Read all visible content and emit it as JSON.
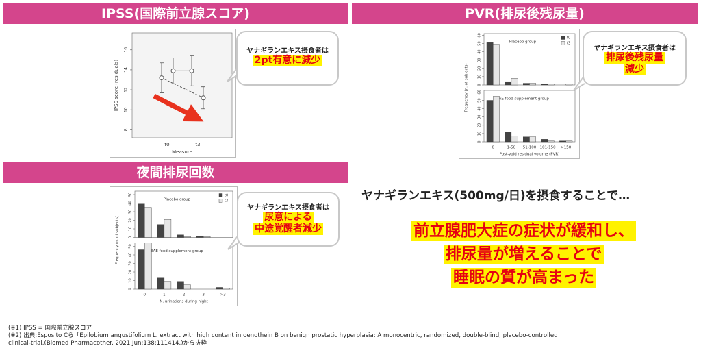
{
  "ipss": {
    "heading": "IPSS(国際前立腺スコア)",
    "chart": {
      "type": "line",
      "ylabel": "IPSS score (residuals)",
      "xlabel": "Measure",
      "categories": [
        "t0",
        "t3"
      ],
      "ylim": [
        7.2,
        17.7
      ],
      "yticks": [
        8,
        10,
        12,
        14,
        16
      ],
      "series": [
        {
          "color": "#555555",
          "dash": false,
          "values": [
            13.9,
            13.9
          ],
          "errors": [
            1.3,
            1.5
          ]
        },
        {
          "color": "#555555",
          "dash": true,
          "values": [
            13.2,
            11.2
          ],
          "errors": [
            1.5,
            1.1
          ]
        }
      ]
    },
    "callout": {
      "lead": "ヤナギランエキス摂食者は",
      "highlight": [
        "2pt有意に減少"
      ]
    }
  },
  "pvr": {
    "heading": "PVR(排尿後残尿量)",
    "chart": {
      "type": "bar",
      "ylabel": "Frequency (n. of subjects)",
      "xlabel": "Post-void residual volume (PVR)",
      "categories": [
        "0",
        "1-50",
        "51-100",
        "101-150",
        ">150"
      ],
      "series_names": [
        "t0",
        "t3"
      ],
      "colors": [
        "#444444",
        "#e6e6e6"
      ],
      "ylim": [
        0,
        62
      ],
      "yticks": [
        0,
        10,
        20,
        30,
        40,
        50,
        60
      ],
      "panels": [
        {
          "label": "Placebo group",
          "series": [
            [
              51,
              4,
              2,
              1,
              0
            ],
            [
              49,
              8,
              2,
              1,
              1
            ]
          ]
        },
        {
          "label": "EAE food supplement group",
          "series": [
            [
              50,
              12,
              6,
              3,
              1
            ],
            [
              55,
              7,
              6,
              1,
              1
            ]
          ]
        }
      ]
    },
    "callout": {
      "lead": "ヤナギランエキス摂食者は",
      "highlight": [
        "排尿後残尿量",
        "減少"
      ]
    }
  },
  "nocturia": {
    "heading": "夜間排尿回数",
    "chart": {
      "type": "bar",
      "ylabel": "Frequency (n. of subjects)",
      "xlabel": "N. urinations during night",
      "categories": [
        "0",
        "1",
        "2",
        "3",
        ">3"
      ],
      "series_names": [
        "t0",
        "t3"
      ],
      "colors": [
        "#444444",
        "#e6e6e6"
      ],
      "ylim": [
        0,
        54
      ],
      "yticks": [
        0,
        10,
        20,
        30,
        40,
        50
      ],
      "panels": [
        {
          "label": "Placebo group",
          "series": [
            [
              39,
              15,
              3,
              1,
              0
            ],
            [
              35,
              21,
              1,
              1,
              0
            ]
          ]
        },
        {
          "label": "EAE food supplement group",
          "series": [
            [
              46,
              13,
              9,
              0,
              2
            ],
            [
              54,
              9,
              5,
              0,
              1
            ]
          ]
        }
      ]
    },
    "callout": {
      "lead": "ヤナギランエキス摂食者は",
      "highlight": [
        "尿意による",
        "中途覚醒者減少"
      ]
    }
  },
  "summary": {
    "lead": "ヤナギランエキス(500mg/日)を摂食することで…",
    "conclusion": [
      "前立腺肥大症の症状が緩和し、",
      "排尿量が増えることで",
      "睡眠の質が高まった"
    ]
  },
  "footnotes": [
    "(※1) IPSS = 国際前立腺スコア",
    "(※2) 出典:Esposito Cら「Epilobium angustifolium L. extract with high content in oenothein B on benign prostatic hyperplasia: A monocentric, randomized, double-blind, placebo-controlled",
    "clinical-trial.(Biomed Pharmacother. 2021 Jun;138:111414.)から抜粋"
  ]
}
